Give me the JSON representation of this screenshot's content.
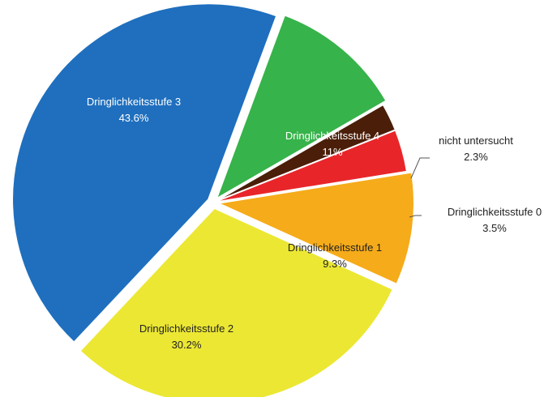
{
  "chart_data": {
    "type": "pie",
    "title": "",
    "slices": [
      {
        "label": "nicht untersucht",
        "value": 2.3,
        "display": "2.3%",
        "color": "#4a1e08"
      },
      {
        "label": "Dringlichkeitsstufe 0",
        "value": 3.5,
        "display": "3.5%",
        "color": "#e8262a"
      },
      {
        "label": "Dringlichkeitsstufe 1",
        "value": 9.3,
        "display": "9.3%",
        "color": "#f6ab1a"
      },
      {
        "label": "Dringlichkeitsstufe 2",
        "value": 30.2,
        "display": "30.2%",
        "color": "#ece733"
      },
      {
        "label": "Dringlichkeitsstufe 3",
        "value": 43.6,
        "display": "43.6%",
        "color": "#1f6fbe"
      },
      {
        "label": "Dringlichkeitsstufe 4",
        "value": 11,
        "display": "11%",
        "color": "#36b34a"
      }
    ],
    "label_colors": {
      "nicht untersucht": "#222222",
      "Dringlichkeitsstufe 0": "#222222",
      "Dringlichkeitsstufe 1": "#222222",
      "Dringlichkeitsstufe 2": "#222222",
      "Dringlichkeitsstufe 3": "#ffffff",
      "Dringlichkeitsstufe 4": "#ffffff"
    },
    "exploded": true,
    "legend": "none"
  }
}
